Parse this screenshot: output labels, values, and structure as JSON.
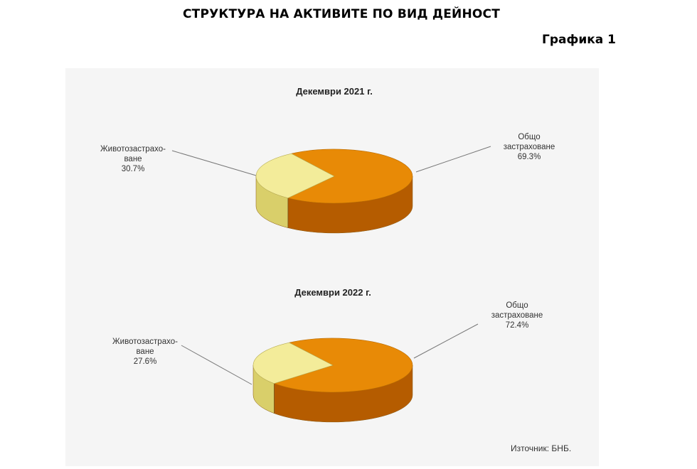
{
  "title": "СТРУКТУРА НА АКТИВИТЕ ПО ВИД ДЕЙНОСТ",
  "figure_label": "Графика 1",
  "source": "Източник: БНБ.",
  "chart_data": [
    {
      "type": "pie",
      "title": "Декември 2021 г.",
      "slices": [
        {
          "name_lines": [
            "Общо",
            "застраховане"
          ],
          "value": 69.3,
          "value_label": "69.3%",
          "color": "#e88a06",
          "side_color": "#b55c00"
        },
        {
          "name_lines": [
            "Животозастрахо-",
            "ване"
          ],
          "value": 30.7,
          "value_label": "30.7%",
          "color": "#f3ec9a",
          "side_color": "#d9cf6a"
        }
      ]
    },
    {
      "type": "pie",
      "title": "Декември 2022 г.",
      "slices": [
        {
          "name_lines": [
            "Общо",
            "застраховане"
          ],
          "value": 72.4,
          "value_label": "72.4%",
          "color": "#e88a06",
          "side_color": "#b55c00"
        },
        {
          "name_lines": [
            "Животозастрахо-",
            "ване"
          ],
          "value": 27.6,
          "value_label": "27.6%",
          "color": "#f3ec9a",
          "side_color": "#d9cf6a"
        }
      ]
    }
  ]
}
